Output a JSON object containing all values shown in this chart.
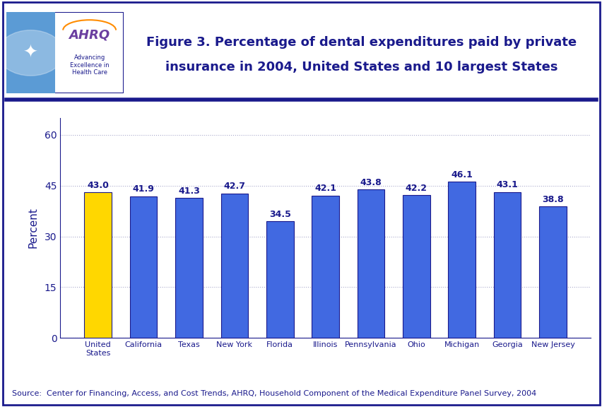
{
  "categories": [
    "United\nStates",
    "California",
    "Texas",
    "New York",
    "Florida",
    "Illinois",
    "Pennsylvania",
    "Ohio",
    "Michigan",
    "Georgia",
    "New Jersey"
  ],
  "values": [
    43.0,
    41.9,
    41.3,
    42.7,
    34.5,
    42.1,
    43.8,
    42.2,
    46.1,
    43.1,
    38.8
  ],
  "bar_colors": [
    "#FFD700",
    "#4169E1",
    "#4169E1",
    "#4169E1",
    "#4169E1",
    "#4169E1",
    "#4169E1",
    "#4169E1",
    "#4169E1",
    "#4169E1",
    "#4169E1"
  ],
  "title_line1": "Figure 3. Percentage of dental expenditures paid by private",
  "title_line2": "insurance in 2004, United States and 10 largest States",
  "ylabel": "Percent",
  "ylim": [
    0,
    65
  ],
  "yticks": [
    0,
    15,
    30,
    45,
    60
  ],
  "source_text": "Source:  Center for Financing, Access, and Cost Trends, AHRQ, Household Component of the Medical Expenditure Panel Survey, 2004",
  "title_color": "#1A1A8C",
  "title_fontsize": 13,
  "value_label_fontsize": 9,
  "bar_edge_color": "#1A1A8C",
  "background_color": "#FFFFFF",
  "plot_bg_color": "#FFFFFF",
  "outer_border_color": "#1A1A8C",
  "divider_color": "#1A1A8C",
  "value_label_color": "#1A1A8C",
  "ylabel_color": "#1A1A8C",
  "tick_label_color": "#1A1A8C",
  "source_color": "#1A1A8C",
  "source_fontsize": 8,
  "ytick_fontsize": 10,
  "xtick_fontsize": 8,
  "ylabel_fontsize": 11,
  "bar_width": 0.6,
  "logo_bg_color": "#5B9BD5",
  "logo_text_color": "#4B0082",
  "logo_subtext_color": "#1A1A8C",
  "logo_border_color": "#1A1A8C"
}
